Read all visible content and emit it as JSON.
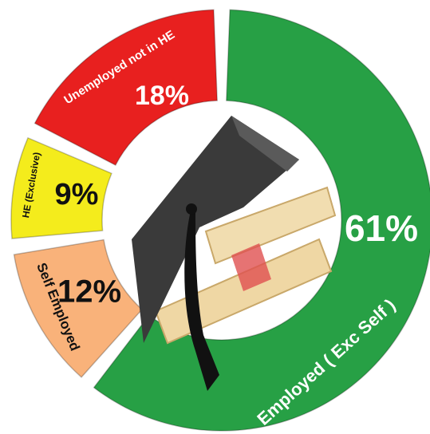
{
  "chart_data": {
    "type": "donut",
    "categories": [
      "Employed ( Exc Self )",
      "Self Employed",
      "HE (Exclusive)",
      "Unemployed not in HE"
    ],
    "values": [
      61,
      12,
      9,
      18
    ],
    "value_labels": [
      "61%",
      "12%",
      "9%",
      "18%"
    ],
    "colors": [
      "#27a045",
      "#f9b27a",
      "#f4ec1c",
      "#e8201f"
    ]
  }
}
